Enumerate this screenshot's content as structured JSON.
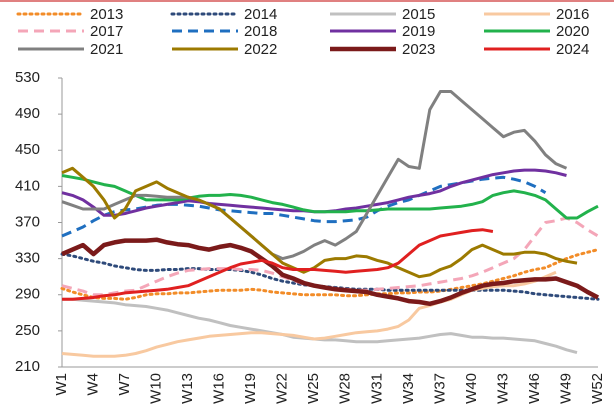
{
  "chart_data": {
    "type": "line",
    "categories": [
      "W1",
      null,
      null,
      "W4",
      null,
      null,
      "W7",
      null,
      null,
      "W10",
      null,
      null,
      "W13",
      null,
      null,
      "W16",
      null,
      null,
      "W19",
      null,
      null,
      "W22",
      null,
      null,
      "W25",
      null,
      null,
      "W28",
      null,
      null,
      "W31",
      null,
      null,
      "W34",
      null,
      null,
      "W37",
      null,
      null,
      "W40",
      null,
      null,
      "W43",
      null,
      null,
      "W46",
      null,
      null,
      "W49",
      null,
      null,
      "W52"
    ],
    "ylim": [
      210,
      530
    ],
    "yticks": [
      210,
      250,
      290,
      330,
      370,
      410,
      450,
      490,
      530
    ],
    "series": [
      {
        "name": "2013",
        "color": "#f28c28",
        "style": "dotted",
        "values": [
          297,
          293,
          290,
          287,
          286,
          286,
          285,
          287,
          290,
          291,
          291,
          292,
          292,
          293,
          294,
          295,
          295,
          295,
          296,
          295,
          293,
          292,
          291,
          290,
          290,
          290,
          290,
          289,
          289,
          290,
          291,
          291,
          292,
          292,
          293,
          293,
          294,
          296,
          298,
          300,
          302,
          305,
          308,
          311,
          315,
          318,
          320,
          325,
          330,
          334,
          337,
          340
        ]
      },
      {
        "name": "2014",
        "color": "#2e4a7a",
        "style": "dotted",
        "values": [
          335,
          333,
          330,
          327,
          325,
          322,
          320,
          318,
          317,
          317,
          318,
          318,
          319,
          319,
          318,
          318,
          318,
          317,
          315,
          312,
          308,
          305,
          303,
          301,
          300,
          299,
          298,
          297,
          296,
          296,
          296,
          295,
          295,
          295,
          295,
          295,
          295,
          295,
          295,
          295,
          295,
          295,
          295,
          294,
          293,
          291,
          290,
          289,
          288,
          287,
          286,
          285
        ]
      },
      {
        "name": "2015",
        "color": "#c0c0c0",
        "style": "solid",
        "values": [
          285,
          285,
          284,
          283,
          282,
          281,
          279,
          278,
          277,
          275,
          273,
          270,
          267,
          264,
          262,
          259,
          256,
          254,
          252,
          250,
          248,
          246,
          243,
          242,
          241,
          240,
          240,
          239,
          238,
          238,
          238,
          239,
          240,
          241,
          242,
          244,
          246,
          247,
          245,
          243,
          243,
          242,
          242,
          241,
          240,
          239,
          236,
          233,
          229,
          226,
          null,
          null
        ]
      },
      {
        "name": "2016",
        "color": "#f8c9a0",
        "style": "solid",
        "values": [
          225,
          224,
          223,
          222,
          222,
          222,
          223,
          225,
          228,
          232,
          235,
          238,
          240,
          242,
          244,
          245,
          246,
          247,
          248,
          248,
          247,
          246,
          245,
          243,
          241,
          242,
          244,
          246,
          248,
          249,
          250,
          252,
          255,
          262,
          275,
          278,
          282,
          285,
          290,
          295,
          297,
          299,
          300,
          300,
          302,
          305,
          310,
          315,
          null,
          null,
          null,
          null
        ]
      },
      {
        "name": "2017",
        "color": "#f4a6b8",
        "style": "dashed",
        "values": [
          300,
          297,
          294,
          290,
          290,
          292,
          294,
          295,
          300,
          305,
          310,
          314,
          317,
          318,
          319,
          319,
          319,
          318,
          318,
          317,
          314,
          310,
          306,
          302,
          300,
          298,
          297,
          296,
          295,
          295,
          296,
          297,
          298,
          299,
          300,
          302,
          304,
          306,
          308,
          311,
          315,
          320,
          325,
          330,
          340,
          355,
          370,
          372,
          375,
          370,
          362,
          355
        ]
      },
      {
        "name": "2018",
        "color": "#1f6fc0",
        "style": "dashed",
        "values": [
          355,
          360,
          365,
          372,
          378,
          382,
          384,
          385,
          387,
          389,
          390,
          390,
          389,
          388,
          386,
          384,
          383,
          382,
          381,
          380,
          380,
          378,
          376,
          374,
          372,
          371,
          371,
          372,
          373,
          376,
          383,
          388,
          392,
          395,
          400,
          405,
          410,
          412,
          414,
          416,
          418,
          419,
          420,
          418,
          415,
          410,
          403,
          null,
          null,
          null,
          null,
          null
        ]
      },
      {
        "name": "2019",
        "color": "#7030a0",
        "style": "solid",
        "values": [
          403,
          400,
          395,
          387,
          378,
          378,
          380,
          383,
          386,
          388,
          390,
          392,
          394,
          393,
          391,
          390,
          389,
          388,
          387,
          386,
          385,
          384,
          383,
          383,
          382,
          382,
          383,
          385,
          386,
          388,
          390,
          392,
          395,
          398,
          400,
          402,
          405,
          410,
          414,
          417,
          420,
          423,
          425,
          427,
          428,
          428,
          427,
          425,
          422,
          null,
          null,
          null
        ]
      },
      {
        "name": "2020",
        "color": "#22b24c",
        "style": "solid",
        "values": [
          422,
          420,
          418,
          415,
          412,
          410,
          405,
          400,
          395,
          395,
          395,
          395,
          397,
          399,
          400,
          400,
          401,
          400,
          398,
          395,
          392,
          390,
          387,
          384,
          382,
          382,
          382,
          382,
          383,
          383,
          384,
          385,
          385,
          385,
          385,
          385,
          386,
          387,
          388,
          390,
          393,
          400,
          403,
          405,
          403,
          400,
          395,
          385,
          375,
          375,
          382,
          388
        ]
      },
      {
        "name": "2021",
        "color": "#808080",
        "style": "solid",
        "values": [
          393,
          389,
          385,
          385,
          385,
          390,
          395,
          400,
          400,
          399,
          398,
          398,
          398,
          395,
          390,
          385,
          375,
          365,
          355,
          345,
          335,
          330,
          333,
          338,
          345,
          350,
          345,
          352,
          360,
          380,
          400,
          420,
          440,
          432,
          430,
          495,
          515,
          515,
          505,
          495,
          485,
          475,
          465,
          470,
          472,
          460,
          445,
          435,
          430,
          null,
          null,
          null
        ]
      },
      {
        "name": "2022",
        "color": "#9c7a00",
        "style": "solid",
        "values": [
          425,
          430,
          420,
          410,
          395,
          375,
          385,
          405,
          410,
          415,
          408,
          403,
          398,
          395,
          390,
          385,
          375,
          365,
          355,
          345,
          335,
          325,
          320,
          315,
          320,
          328,
          330,
          330,
          333,
          332,
          328,
          325,
          320,
          315,
          310,
          312,
          318,
          322,
          330,
          340,
          345,
          340,
          335,
          335,
          337,
          337,
          335,
          330,
          327,
          325,
          null,
          null
        ]
      },
      {
        "name": "2023",
        "color": "#7b1a1a",
        "style": "thick",
        "values": [
          335,
          340,
          345,
          335,
          345,
          348,
          350,
          350,
          350,
          351,
          348,
          346,
          345,
          342,
          340,
          343,
          345,
          342,
          338,
          330,
          322,
          312,
          308,
          303,
          300,
          298,
          296,
          295,
          294,
          293,
          290,
          288,
          286,
          283,
          282,
          280,
          283,
          287,
          292,
          296,
          300,
          302,
          303,
          305,
          306,
          307,
          307,
          308,
          304,
          300,
          293,
          287
        ]
      },
      {
        "name": "2024",
        "color": "#e02020",
        "style": "solid",
        "values": [
          285,
          285,
          286,
          287,
          289,
          290,
          292,
          293,
          294,
          295,
          296,
          298,
          300,
          305,
          310,
          315,
          320,
          324,
          326,
          328,
          325,
          320,
          318,
          318,
          318,
          317,
          316,
          315,
          316,
          317,
          318,
          320,
          325,
          335,
          345,
          350,
          355,
          357,
          359,
          361,
          362,
          360,
          null,
          null,
          null,
          null,
          null,
          null,
          null,
          null,
          null,
          null
        ]
      }
    ]
  }
}
